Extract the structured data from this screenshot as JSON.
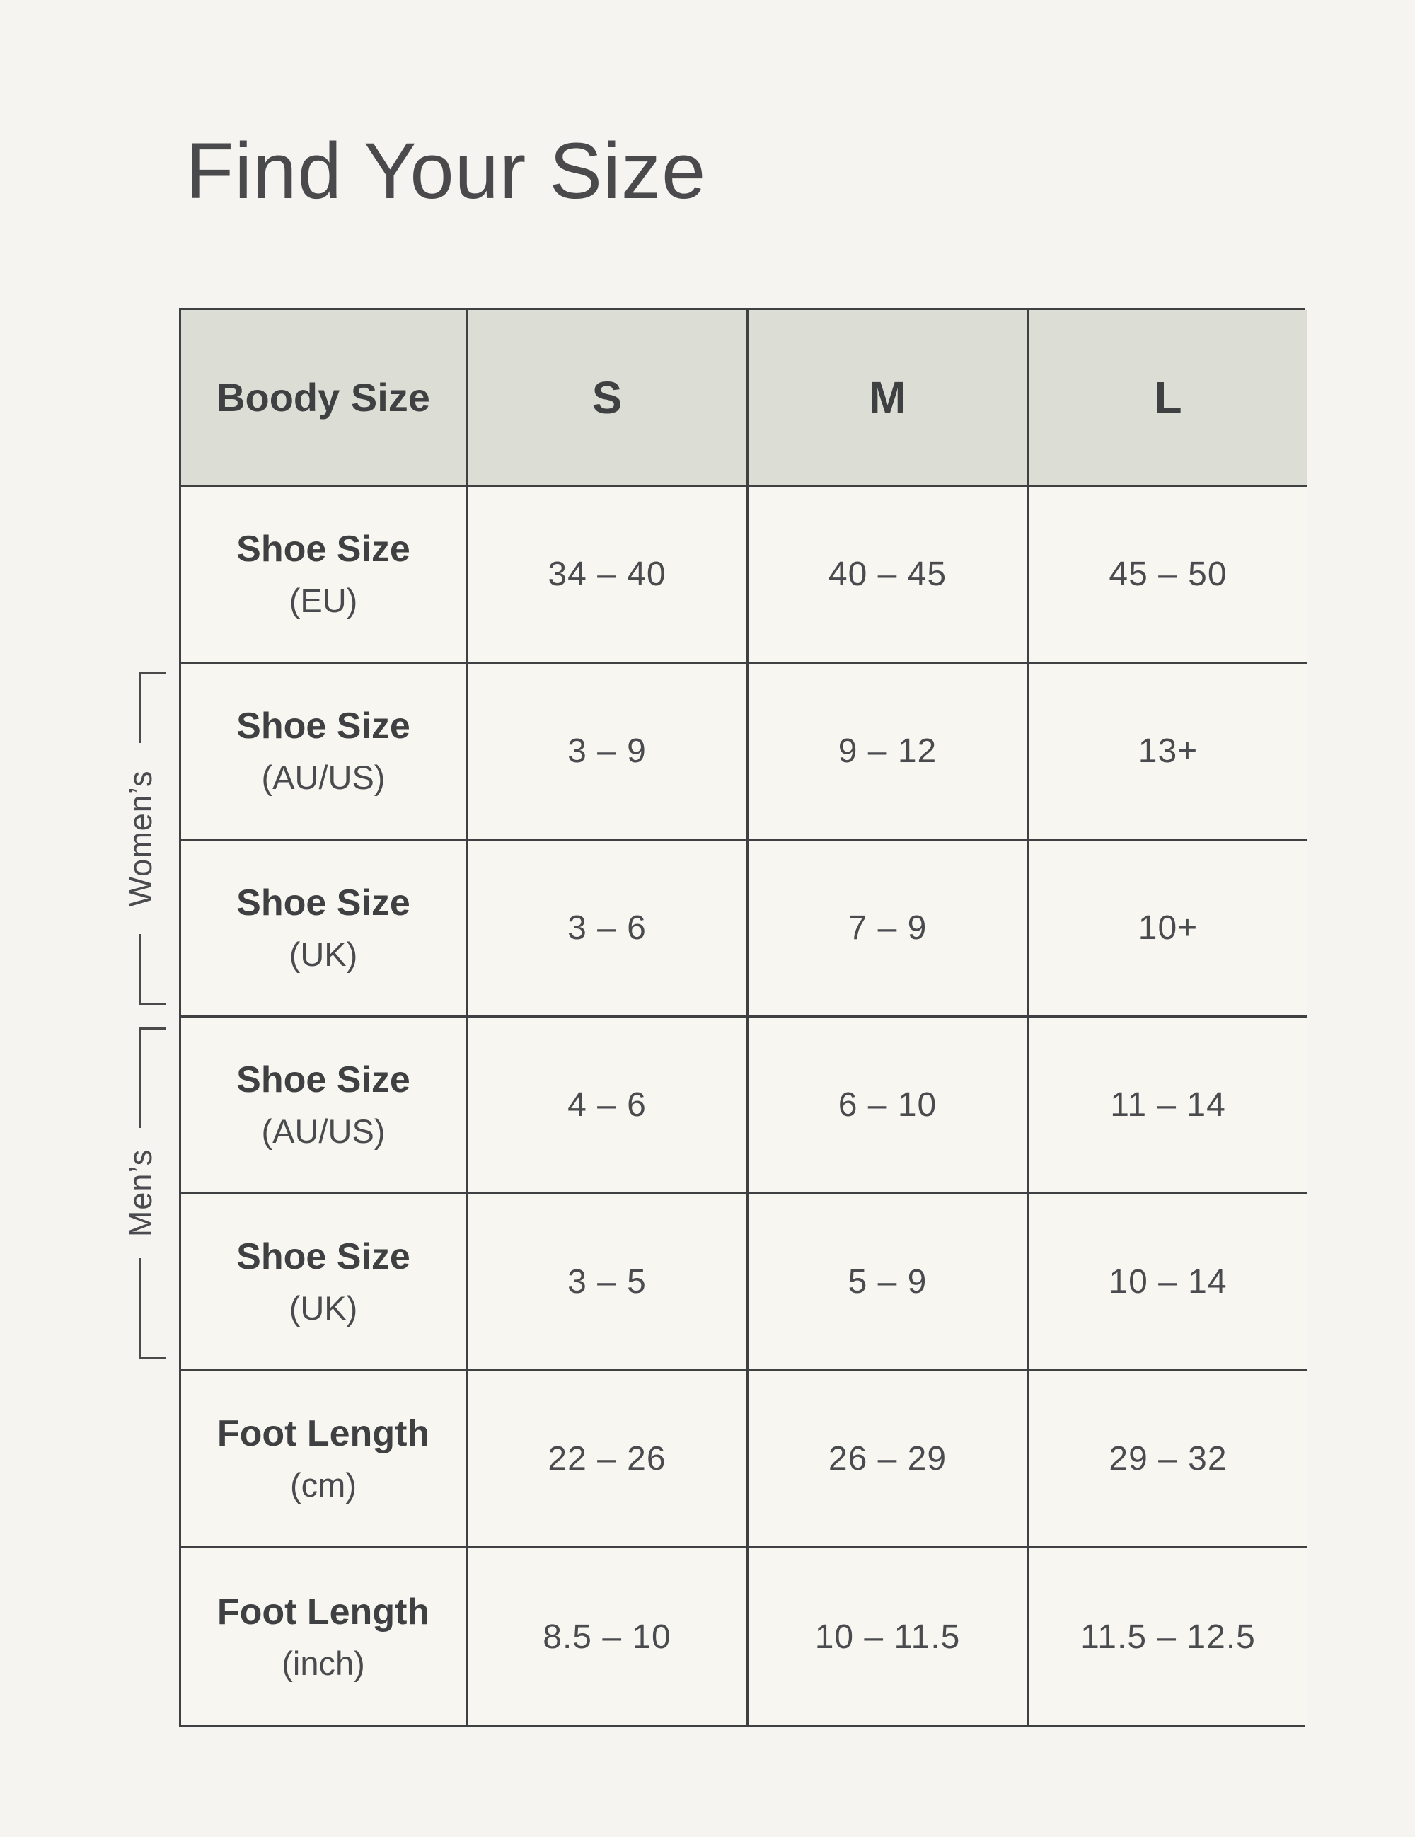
{
  "page": {
    "title": "Find Your Size"
  },
  "table": {
    "header": {
      "label": "Boody Size",
      "sizes": [
        "S",
        "M",
        "L"
      ]
    },
    "rows": [
      {
        "label_line1": "Shoe Size",
        "label_line2": "(EU)",
        "group": "",
        "values": [
          "34 – 40",
          "40 – 45",
          "45 – 50"
        ]
      },
      {
        "label_line1": "Shoe Size",
        "label_line2": "(AU/US)",
        "group": "womens",
        "values": [
          "3 – 9",
          "9 – 12",
          "13+"
        ]
      },
      {
        "label_line1": "Shoe Size",
        "label_line2": "(UK)",
        "group": "womens",
        "values": [
          "3 – 6",
          "7 – 9",
          "10+"
        ]
      },
      {
        "label_line1": "Shoe Size",
        "label_line2": "(AU/US)",
        "group": "mens",
        "values": [
          "4 – 6",
          "6 – 10",
          "11 – 14"
        ]
      },
      {
        "label_line1": "Shoe Size",
        "label_line2": "(UK)",
        "group": "mens",
        "values": [
          "3 – 5",
          "5 – 9",
          "10 – 14"
        ]
      },
      {
        "label_line1": "Foot Length",
        "label_line2": "(cm)",
        "group": "",
        "values": [
          "22 – 26",
          "26 – 29",
          "29 – 32"
        ]
      },
      {
        "label_line1": "Foot Length",
        "label_line2": "(inch)",
        "group": "",
        "values": [
          "8.5 – 10",
          "10 – 11.5",
          "11.5 – 12.5"
        ]
      }
    ]
  },
  "side_labels": {
    "womens": "Women’s",
    "mens": "Men’s"
  },
  "colors": {
    "page_bg": "#f5f4f0",
    "cell_bg": "#f7f6f1",
    "header_bg": "#dcddd5",
    "border": "#3f4041",
    "text": "#4a4b4e",
    "text_dark": "#3f4042"
  }
}
